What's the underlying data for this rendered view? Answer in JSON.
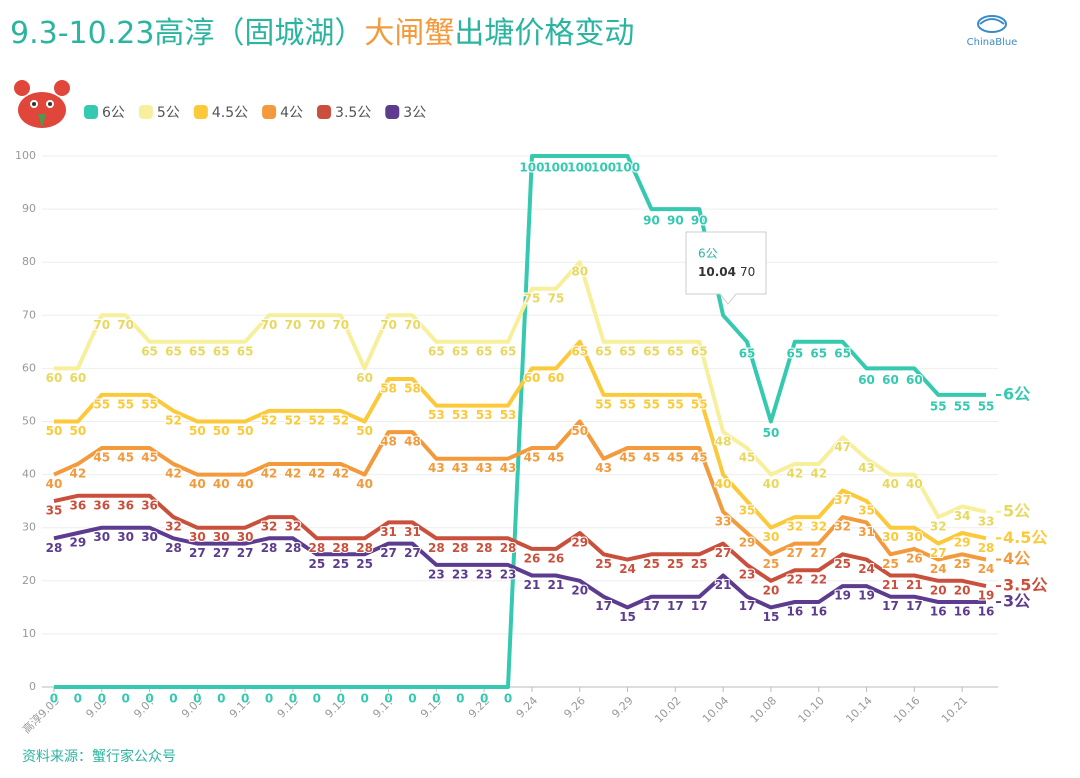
{
  "chart_data": {
    "type": "line",
    "title": [
      "9.3-10.23高淳（固城湖）",
      "大闸蟹",
      "出塘价格变动"
    ],
    "categories": [
      "高淳9.03",
      null,
      "9.05",
      null,
      "9.07",
      null,
      "9.09",
      null,
      "9.11",
      null,
      "9.13",
      null,
      "9.15",
      null,
      "9.17",
      null,
      "9.19",
      null,
      "9.22",
      null,
      "9.24",
      null,
      "9.26",
      null,
      "9.29",
      null,
      "10.02",
      null,
      "10.04",
      null,
      "10.08",
      null,
      "10.10",
      null,
      "10.14",
      null,
      "10.16",
      null,
      "10.21",
      null
    ],
    "series": [
      {
        "name": "6公",
        "color": "#35c9b0",
        "values": [
          0,
          0,
          0,
          0,
          0,
          0,
          0,
          0,
          0,
          0,
          0,
          0,
          0,
          0,
          0,
          0,
          0,
          0,
          0,
          0,
          100,
          100,
          100,
          100,
          100,
          90,
          90,
          90,
          70,
          65,
          50,
          65,
          65,
          65,
          60,
          60,
          60,
          55,
          55,
          55
        ]
      },
      {
        "name": "5公",
        "color": "#f7ef9c",
        "values": [
          60,
          60,
          70,
          70,
          65,
          65,
          65,
          65,
          65,
          70,
          70,
          70,
          70,
          60,
          70,
          70,
          65,
          65,
          65,
          65,
          75,
          75,
          80,
          65,
          65,
          65,
          65,
          65,
          48,
          45,
          40,
          42,
          42,
          47,
          43,
          40,
          40,
          32,
          34,
          33
        ]
      },
      {
        "name": "4.5公",
        "color": "#fbc93a",
        "values": [
          50,
          50,
          55,
          55,
          55,
          52,
          50,
          50,
          50,
          52,
          52,
          52,
          52,
          50,
          58,
          58,
          53,
          53,
          53,
          53,
          60,
          60,
          65,
          55,
          55,
          55,
          55,
          55,
          40,
          35,
          30,
          32,
          32,
          37,
          35,
          30,
          30,
          27,
          29,
          28
        ]
      },
      {
        "name": "4公",
        "color": "#f39a3c",
        "values": [
          40,
          42,
          45,
          45,
          45,
          42,
          40,
          40,
          40,
          42,
          42,
          42,
          42,
          40,
          48,
          48,
          43,
          43,
          43,
          43,
          45,
          45,
          50,
          43,
          45,
          45,
          45,
          45,
          33,
          29,
          25,
          27,
          27,
          32,
          31,
          25,
          26,
          24,
          25,
          24
        ]
      },
      {
        "name": "3.5公",
        "color": "#c9503c",
        "values": [
          35,
          36,
          36,
          36,
          36,
          32,
          30,
          30,
          30,
          32,
          32,
          28,
          28,
          28,
          31,
          31,
          28,
          28,
          28,
          28,
          26,
          26,
          29,
          25,
          24,
          25,
          25,
          25,
          27,
          23,
          20,
          22,
          22,
          25,
          24,
          21,
          21,
          20,
          20,
          19
        ]
      },
      {
        "name": "3公",
        "color": "#5d3c8f",
        "values": [
          28,
          29,
          30,
          30,
          30,
          28,
          27,
          27,
          27,
          28,
          28,
          25,
          25,
          25,
          27,
          27,
          23,
          23,
          23,
          23,
          21,
          21,
          20,
          17,
          15,
          17,
          17,
          17,
          21,
          17,
          15,
          16,
          16,
          19,
          19,
          17,
          17,
          16,
          16,
          16
        ]
      }
    ],
    "ylim": [
      0,
      100
    ],
    "yticks": [
      0,
      10,
      20,
      30,
      40,
      50,
      60,
      70,
      80,
      90,
      100
    ],
    "grid": true
  },
  "logo": "ChinaBlue",
  "source": "资料来源：蟹行家公众号"
}
